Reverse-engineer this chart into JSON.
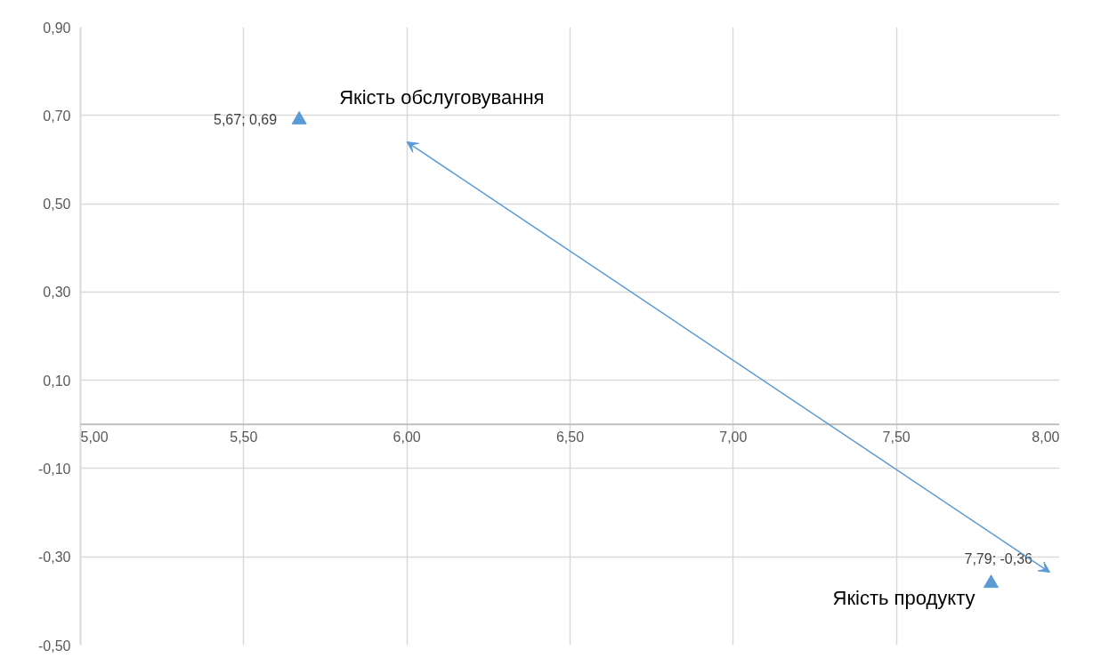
{
  "chart_data": {
    "type": "scatter",
    "x": [
      5.67,
      7.79
    ],
    "series": [
      {
        "color": "#5b9bd5",
        "values": [
          0.69,
          -0.36
        ],
        "value_labels": [
          "5,67; 0,69",
          "7,79; -0,36"
        ]
      }
    ],
    "marker": "triangle",
    "xlim": [
      5.0,
      8.0
    ],
    "xticks": [
      {
        "value": 5.0,
        "label": "5,00"
      },
      {
        "value": 5.5,
        "label": "5,50"
      },
      {
        "value": 6.0,
        "label": "6,00"
      },
      {
        "value": 6.5,
        "label": "6,50"
      },
      {
        "value": 7.0,
        "label": "7,00"
      },
      {
        "value": 7.5,
        "label": "7,50"
      },
      {
        "value": 8.0,
        "label": "8,00"
      }
    ],
    "ylim": [
      -0.5,
      0.9
    ],
    "yticks": [
      {
        "value": -0.5,
        "label": "-0,50"
      },
      {
        "value": -0.3,
        "label": "-0,30"
      },
      {
        "value": -0.1,
        "label": "-0,10"
      },
      {
        "value": 0.1,
        "label": "0,10"
      },
      {
        "value": 0.3,
        "label": "0,30"
      },
      {
        "value": 0.5,
        "label": "0,50"
      },
      {
        "value": 0.7,
        "label": "0,70"
      },
      {
        "value": 0.9,
        "label": "0,90"
      }
    ],
    "grid": true,
    "annotations": [
      {
        "text": "Якість обслуговування",
        "x": 5.67,
        "y": 0.69
      },
      {
        "text": "Якість продукту",
        "x": 7.79,
        "y": -0.36
      }
    ]
  }
}
